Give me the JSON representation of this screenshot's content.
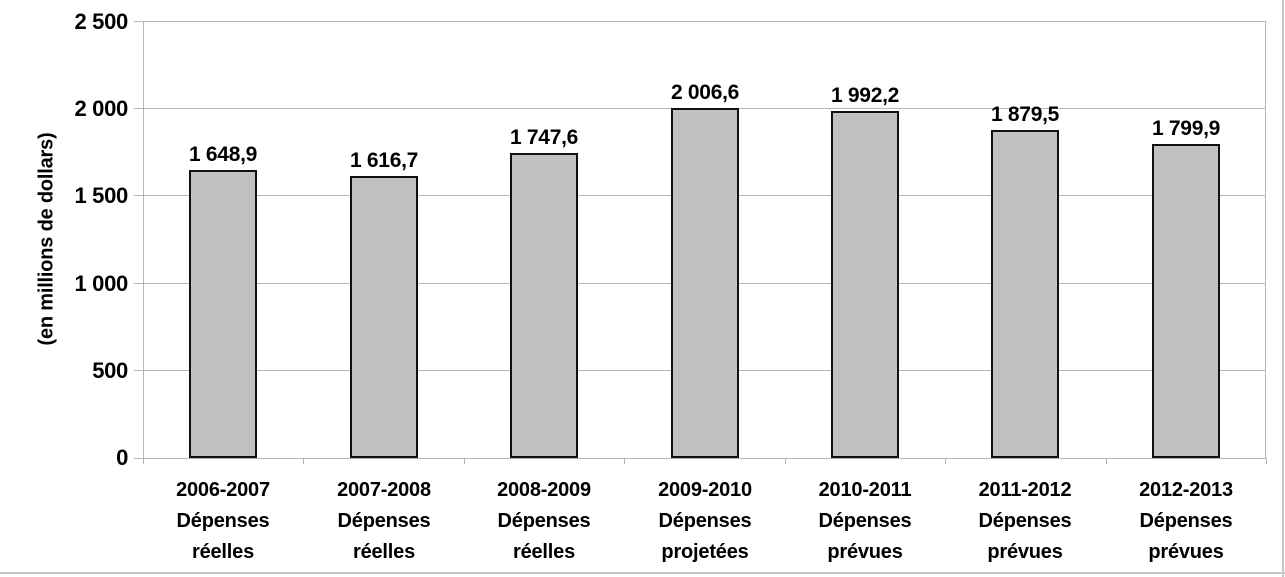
{
  "chart_data": {
    "type": "bar",
    "title": "",
    "xlabel": "",
    "ylabel": "(en millions de dollars)",
    "ylim": [
      0,
      2500
    ],
    "grid": "horizontal",
    "legend": "none",
    "y_ticks": [
      {
        "value": 0,
        "label": "0"
      },
      {
        "value": 500,
        "label": "500"
      },
      {
        "value": 1000,
        "label": "1 000"
      },
      {
        "value": 1500,
        "label": "1 500"
      },
      {
        "value": 2000,
        "label": "2 000"
      },
      {
        "value": 2500,
        "label": "2 500"
      }
    ],
    "categories": [
      [
        "2006-2007",
        "Dépenses",
        "réelles"
      ],
      [
        "2007-2008",
        "Dépenses",
        "réelles"
      ],
      [
        "2008-2009",
        "Dépenses",
        "réelles"
      ],
      [
        "2009-2010",
        "Dépenses",
        "projetées"
      ],
      [
        "2010-2011",
        "Dépenses",
        "prévues"
      ],
      [
        "2011-2012",
        "Dépenses",
        "prévues"
      ],
      [
        "2012-2013",
        "Dépenses",
        "prévues"
      ]
    ],
    "values": [
      1648.9,
      1616.7,
      1747.6,
      2006.6,
      1992.2,
      1879.5,
      1799.9
    ],
    "value_labels": [
      "1 648,9",
      "1 616,7",
      "1 747,6",
      "2 006,6",
      "1 992,2",
      "1 879,5",
      "1 799,9"
    ]
  },
  "colors": {
    "bar_fill": "#c1c1c1",
    "bar_border": "#111111",
    "gridline": "#b5b5b5",
    "frame": "#c9c9c9",
    "text": "#000000"
  }
}
